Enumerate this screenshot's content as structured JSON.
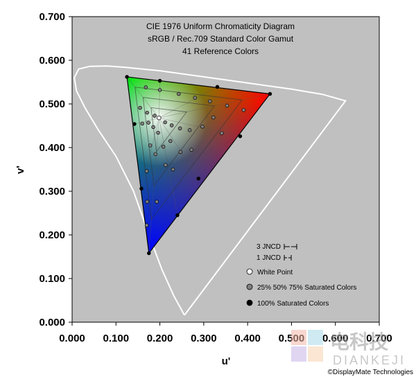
{
  "chart_data": {
    "type": "scatter",
    "title": [
      "CIE 1976 Uniform Chromaticity Diagram",
      "sRGB / Rec.709 Standard Color Gamut",
      "41 Reference Colors"
    ],
    "xlabel": "u'",
    "ylabel": "v'",
    "xlim": [
      0,
      0.7
    ],
    "ylim": [
      0,
      0.7
    ],
    "xticks": [
      "0.000",
      "0.100",
      "0.200",
      "0.300",
      "0.400",
      "0.500",
      "0.600",
      "0.700"
    ],
    "yticks": [
      "0.000",
      "0.100",
      "0.200",
      "0.300",
      "0.400",
      "0.500",
      "0.600",
      "0.700"
    ],
    "grid": false,
    "background": "#c0c0c0",
    "spectral_locus": [
      [
        0.256,
        0.016
      ],
      [
        0.232,
        0.06
      ],
      [
        0.205,
        0.12
      ],
      [
        0.175,
        0.2
      ],
      [
        0.14,
        0.3
      ],
      [
        0.1,
        0.38
      ],
      [
        0.06,
        0.44
      ],
      [
        0.03,
        0.49
      ],
      [
        0.01,
        0.53
      ],
      [
        0.005,
        0.56
      ],
      [
        0.015,
        0.58
      ],
      [
        0.04,
        0.586
      ],
      [
        0.08,
        0.587
      ],
      [
        0.12,
        0.584
      ],
      [
        0.2,
        0.576
      ],
      [
        0.3,
        0.562
      ],
      [
        0.4,
        0.548
      ],
      [
        0.5,
        0.534
      ],
      [
        0.57,
        0.522
      ],
      [
        0.623,
        0.507
      ],
      [
        0.256,
        0.016
      ]
    ],
    "gamut": {
      "red": [
        0.451,
        0.523
      ],
      "green": [
        0.125,
        0.562
      ],
      "blue": [
        0.175,
        0.158
      ],
      "white": [
        0.198,
        0.468
      ]
    },
    "series": [
      {
        "name": "100% Saturated Colors",
        "color": "#000000",
        "points": [
          [
            0.451,
            0.523
          ],
          [
            0.125,
            0.562
          ],
          [
            0.175,
            0.158
          ],
          [
            0.2,
            0.553
          ],
          [
            0.331,
            0.539
          ],
          [
            0.383,
            0.426
          ],
          [
            0.288,
            0.329
          ],
          [
            0.24,
            0.245
          ],
          [
            0.158,
            0.306
          ],
          [
            0.142,
            0.454
          ]
        ]
      },
      {
        "name": "25% 50% 75% Saturated Colors",
        "color": "#808080",
        "points": [
          [
            0.168,
            0.538
          ],
          [
            0.2,
            0.532
          ],
          [
            0.243,
            0.523
          ],
          [
            0.28,
            0.514
          ],
          [
            0.314,
            0.506
          ],
          [
            0.353,
            0.496
          ],
          [
            0.391,
            0.486
          ],
          [
            0.322,
            0.469
          ],
          [
            0.297,
            0.448
          ],
          [
            0.268,
            0.44
          ],
          [
            0.246,
            0.444
          ],
          [
            0.227,
            0.451
          ],
          [
            0.212,
            0.458
          ],
          [
            0.198,
            0.468
          ],
          [
            0.188,
            0.473
          ],
          [
            0.171,
            0.48
          ],
          [
            0.155,
            0.491
          ],
          [
            0.16,
            0.455
          ],
          [
            0.174,
            0.457
          ],
          [
            0.185,
            0.447
          ],
          [
            0.196,
            0.434
          ],
          [
            0.178,
            0.405
          ],
          [
            0.19,
            0.385
          ],
          [
            0.208,
            0.402
          ],
          [
            0.224,
            0.415
          ],
          [
            0.247,
            0.39
          ],
          [
            0.272,
            0.395
          ],
          [
            0.341,
            0.433
          ],
          [
            0.213,
            0.36
          ],
          [
            0.23,
            0.35
          ],
          [
            0.193,
            0.276
          ],
          [
            0.17,
            0.346
          ],
          [
            0.171,
            0.276
          ],
          [
            0.17,
            0.222
          ]
        ]
      },
      {
        "name": "White Point",
        "color": "#ffffff",
        "points": [
          [
            0.198,
            0.468
          ]
        ]
      }
    ],
    "legend": {
      "placement": "bottom-right",
      "jncd": [
        "3 JNCD",
        "1 JNCD"
      ],
      "items": [
        "White Point",
        "25% 50% 75% Saturated Colors",
        "100% Saturated Colors"
      ]
    },
    "copyright": "©DisplayMate Technologies",
    "watermark": {
      "cn": "电科技",
      "en": "DIANKEJI"
    }
  }
}
